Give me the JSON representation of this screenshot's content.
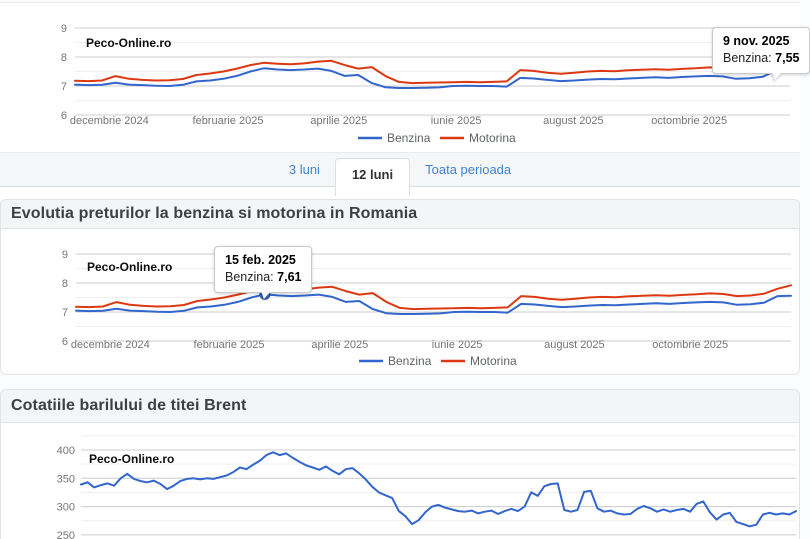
{
  "brand": "Peco-Online.ro",
  "tabs": {
    "items": [
      {
        "label": "3 luni",
        "active": false
      },
      {
        "label": "12 luni",
        "active": true
      },
      {
        "label": "Toata perioada",
        "active": false
      }
    ]
  },
  "sections": {
    "fuel_heading": "Evolutia preturilor la benzina si motorina in Romania",
    "brent_heading": "Cotatiile barilului de titei Brent"
  },
  "colors": {
    "benzina": "#3366cc",
    "motorina": "#dc3912",
    "brent": "#3366cc",
    "link": "#3d85d2",
    "grid_major": "#cccccc",
    "grid_minor": "#efefef"
  },
  "chart_data": [
    {
      "id": "fuel-top",
      "type": "line",
      "brand": "Peco-Online.ro",
      "ylim": [
        6,
        9
      ],
      "y_ticks": [
        6,
        7,
        8,
        9
      ],
      "y_minor": [
        6.5,
        7.5,
        8.5
      ],
      "x_ticks": [
        {
          "label": "decembrie 2024",
          "f": 0.048
        },
        {
          "label": "februarie 2025",
          "f": 0.214
        },
        {
          "label": "aprilie 2025",
          "f": 0.369
        },
        {
          "label": "iunie 2025",
          "f": 0.533
        },
        {
          "label": "august 2025",
          "f": 0.697
        },
        {
          "label": "octombrie 2025",
          "f": 0.859
        }
      ],
      "series": [
        {
          "name": "Benzina",
          "color": "#3366cc",
          "values": [
            7.05,
            7.03,
            7.04,
            7.11,
            7.05,
            7.03,
            7.01,
            7.0,
            7.04,
            7.16,
            7.19,
            7.25,
            7.35,
            7.5,
            7.61,
            7.57,
            7.55,
            7.57,
            7.6,
            7.52,
            7.35,
            7.38,
            7.1,
            6.96,
            6.93,
            6.93,
            6.94,
            6.95,
            7.0,
            7.01,
            7.0,
            7.0,
            6.98,
            7.28,
            7.26,
            7.21,
            7.17,
            7.19,
            7.22,
            7.24,
            7.23,
            7.26,
            7.28,
            7.3,
            7.28,
            7.31,
            7.33,
            7.35,
            7.33,
            7.25,
            7.27,
            7.32,
            7.55,
            7.56
          ]
        },
        {
          "name": "Motorina",
          "color": "#dc3912",
          "values": [
            7.18,
            7.17,
            7.19,
            7.34,
            7.25,
            7.21,
            7.19,
            7.2,
            7.24,
            7.38,
            7.43,
            7.5,
            7.6,
            7.72,
            7.8,
            7.77,
            7.75,
            7.78,
            7.84,
            7.87,
            7.72,
            7.6,
            7.65,
            7.35,
            7.14,
            7.1,
            7.11,
            7.12,
            7.13,
            7.14,
            7.13,
            7.14,
            7.16,
            7.55,
            7.52,
            7.46,
            7.42,
            7.46,
            7.5,
            7.52,
            7.51,
            7.54,
            7.56,
            7.58,
            7.56,
            7.59,
            7.61,
            7.64,
            7.62,
            7.55,
            7.57,
            7.63,
            7.8,
            7.92
          ]
        }
      ],
      "marker": {
        "series_index": 0,
        "point_index": 52
      },
      "tooltip": {
        "date": "9 nov. 2025",
        "label": "Benzina:",
        "value": "7,55"
      }
    },
    {
      "id": "fuel-main",
      "type": "line",
      "brand": "Peco-Online.ro",
      "ylim": [
        6,
        9
      ],
      "y_ticks": [
        6,
        7,
        8,
        9
      ],
      "y_minor": [
        6.5,
        7.5,
        8.5
      ],
      "x_ticks": [
        {
          "label": "decembrie 2024",
          "f": 0.048
        },
        {
          "label": "februarie 2025",
          "f": 0.214
        },
        {
          "label": "aprilie 2025",
          "f": 0.369
        },
        {
          "label": "iunie 2025",
          "f": 0.533
        },
        {
          "label": "august 2025",
          "f": 0.697
        },
        {
          "label": "octombrie 2025",
          "f": 0.859
        }
      ],
      "series": [
        {
          "name": "Benzina",
          "color": "#3366cc",
          "values": [
            7.05,
            7.03,
            7.04,
            7.11,
            7.05,
            7.03,
            7.01,
            7.0,
            7.04,
            7.16,
            7.19,
            7.25,
            7.35,
            7.5,
            7.61,
            7.57,
            7.55,
            7.57,
            7.6,
            7.52,
            7.35,
            7.38,
            7.1,
            6.96,
            6.93,
            6.93,
            6.94,
            6.95,
            7.0,
            7.01,
            7.0,
            7.0,
            6.98,
            7.28,
            7.26,
            7.21,
            7.17,
            7.19,
            7.22,
            7.24,
            7.23,
            7.26,
            7.28,
            7.3,
            7.28,
            7.31,
            7.33,
            7.35,
            7.33,
            7.25,
            7.27,
            7.32,
            7.55,
            7.56
          ]
        },
        {
          "name": "Motorina",
          "color": "#dc3912",
          "values": [
            7.18,
            7.17,
            7.19,
            7.34,
            7.25,
            7.21,
            7.19,
            7.2,
            7.24,
            7.38,
            7.43,
            7.5,
            7.6,
            7.72,
            7.8,
            7.77,
            7.75,
            7.78,
            7.84,
            7.87,
            7.72,
            7.6,
            7.65,
            7.35,
            7.14,
            7.1,
            7.11,
            7.12,
            7.13,
            7.14,
            7.13,
            7.14,
            7.16,
            7.55,
            7.52,
            7.46,
            7.42,
            7.46,
            7.5,
            7.52,
            7.51,
            7.54,
            7.56,
            7.58,
            7.56,
            7.59,
            7.61,
            7.64,
            7.62,
            7.55,
            7.57,
            7.63,
            7.8,
            7.92
          ]
        }
      ],
      "marker": {
        "series_index": 0,
        "point_index": 14
      },
      "tooltip": {
        "date": "15 feb. 2025",
        "label": "Benzina:",
        "value": "7,61"
      }
    },
    {
      "id": "brent",
      "type": "line",
      "brand": "Peco-Online.ro",
      "ylim": [
        250,
        425
      ],
      "y_ticks": [
        250,
        300,
        350,
        400
      ],
      "y_minor": [
        275,
        325,
        375,
        425
      ],
      "x_ticks": [],
      "series": [
        {
          "name": "Brent",
          "color": "#3366cc",
          "values": [
            339,
            343,
            334,
            338,
            341,
            337,
            350,
            358,
            349,
            345,
            343,
            346,
            340,
            331,
            337,
            345,
            349,
            350,
            348,
            350,
            349,
            352,
            355,
            361,
            369,
            366,
            374,
            381,
            391,
            396,
            391,
            394,
            386,
            379,
            373,
            369,
            365,
            371,
            363,
            357,
            366,
            368,
            359,
            348,
            335,
            325,
            320,
            315,
            292,
            283,
            269,
            276,
            290,
            300,
            303,
            298,
            295,
            292,
            291,
            293,
            288,
            291,
            293,
            287,
            292,
            296,
            292,
            300,
            325,
            319,
            336,
            340,
            341,
            294,
            291,
            294,
            326,
            328,
            297,
            291,
            293,
            288,
            286,
            287,
            296,
            301,
            297,
            291,
            295,
            291,
            294,
            296,
            291,
            305,
            309,
            290,
            277,
            286,
            289,
            273,
            269,
            265,
            268,
            286,
            289,
            286,
            288,
            286,
            292
          ]
        }
      ]
    }
  ]
}
